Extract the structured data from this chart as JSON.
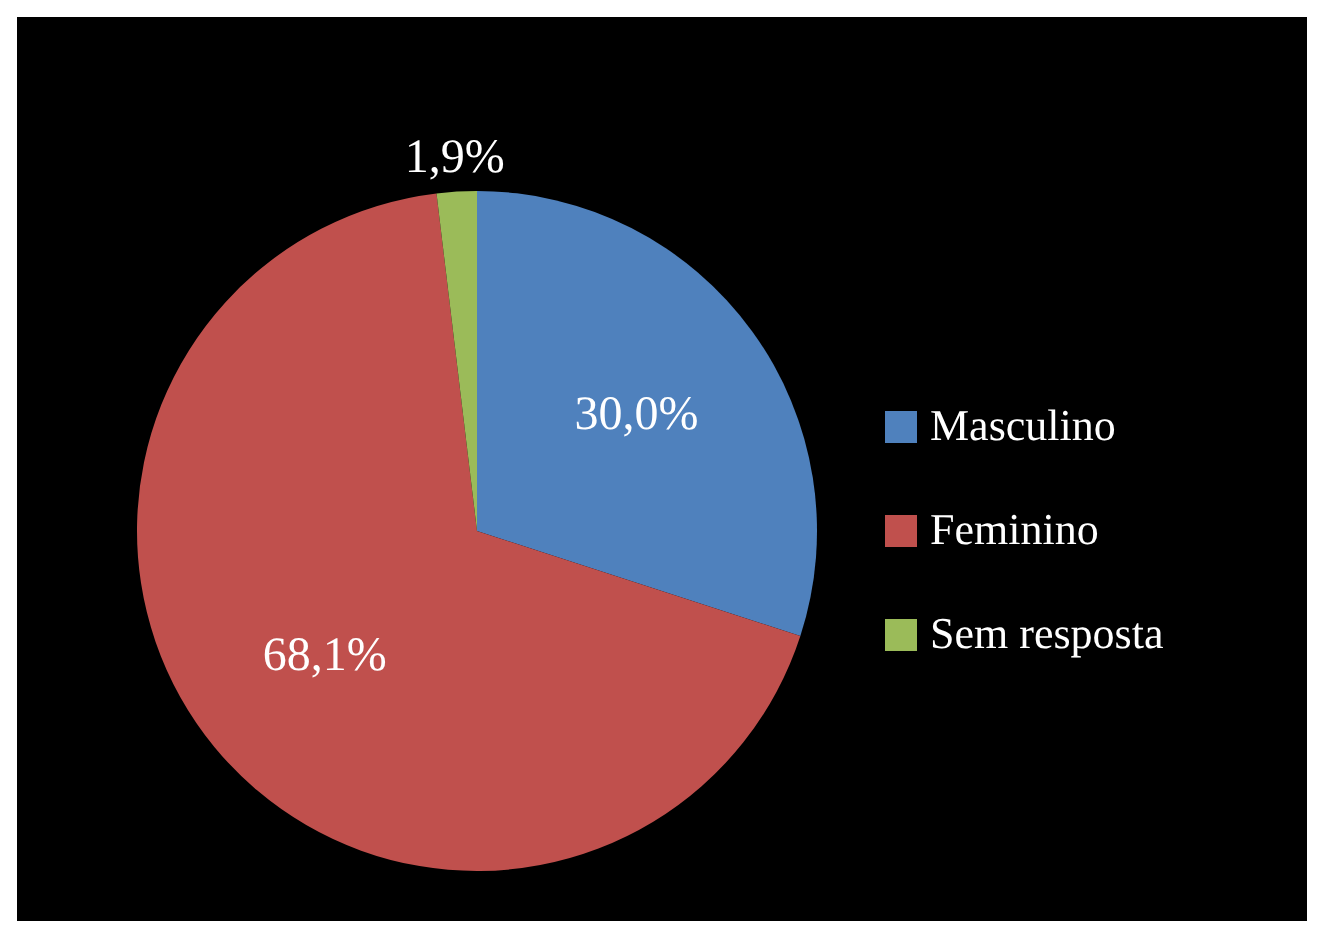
{
  "chart_data": {
    "type": "pie",
    "categories": [
      "Masculino",
      "Feminino",
      "Sem resposta"
    ],
    "values": [
      30.0,
      68.1,
      1.9
    ],
    "colors": [
      "#4f81bd",
      "#c0504d",
      "#9bbb59"
    ],
    "value_labels": [
      "30,0%",
      "68,1%",
      "1,9%"
    ],
    "legend": "right"
  }
}
